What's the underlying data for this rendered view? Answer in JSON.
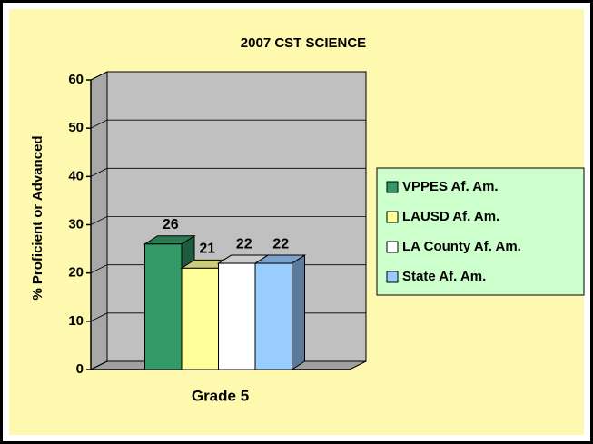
{
  "chart_data": {
    "type": "bar3d",
    "title": "2007 CST SCIENCE",
    "y_label": "% Proficient or Advanced",
    "categories": [
      "Grade 5"
    ],
    "series": [
      {
        "name": "VPPES Af. Am.",
        "color": "#339966",
        "values": [
          26
        ]
      },
      {
        "name": "LAUSD Af. Am.",
        "color": "#FFFF99",
        "values": [
          21
        ]
      },
      {
        "name": "LA County Af. Am.",
        "color": "#FFFFFF",
        "values": [
          22
        ]
      },
      {
        "name": "State Af. Am.",
        "color": "#99CCFF",
        "values": [
          22
        ]
      }
    ],
    "ylim": [
      0,
      60
    ],
    "yticks": [
      0,
      10,
      20,
      30,
      40,
      50,
      60
    ],
    "grid": true,
    "legend": "right"
  }
}
